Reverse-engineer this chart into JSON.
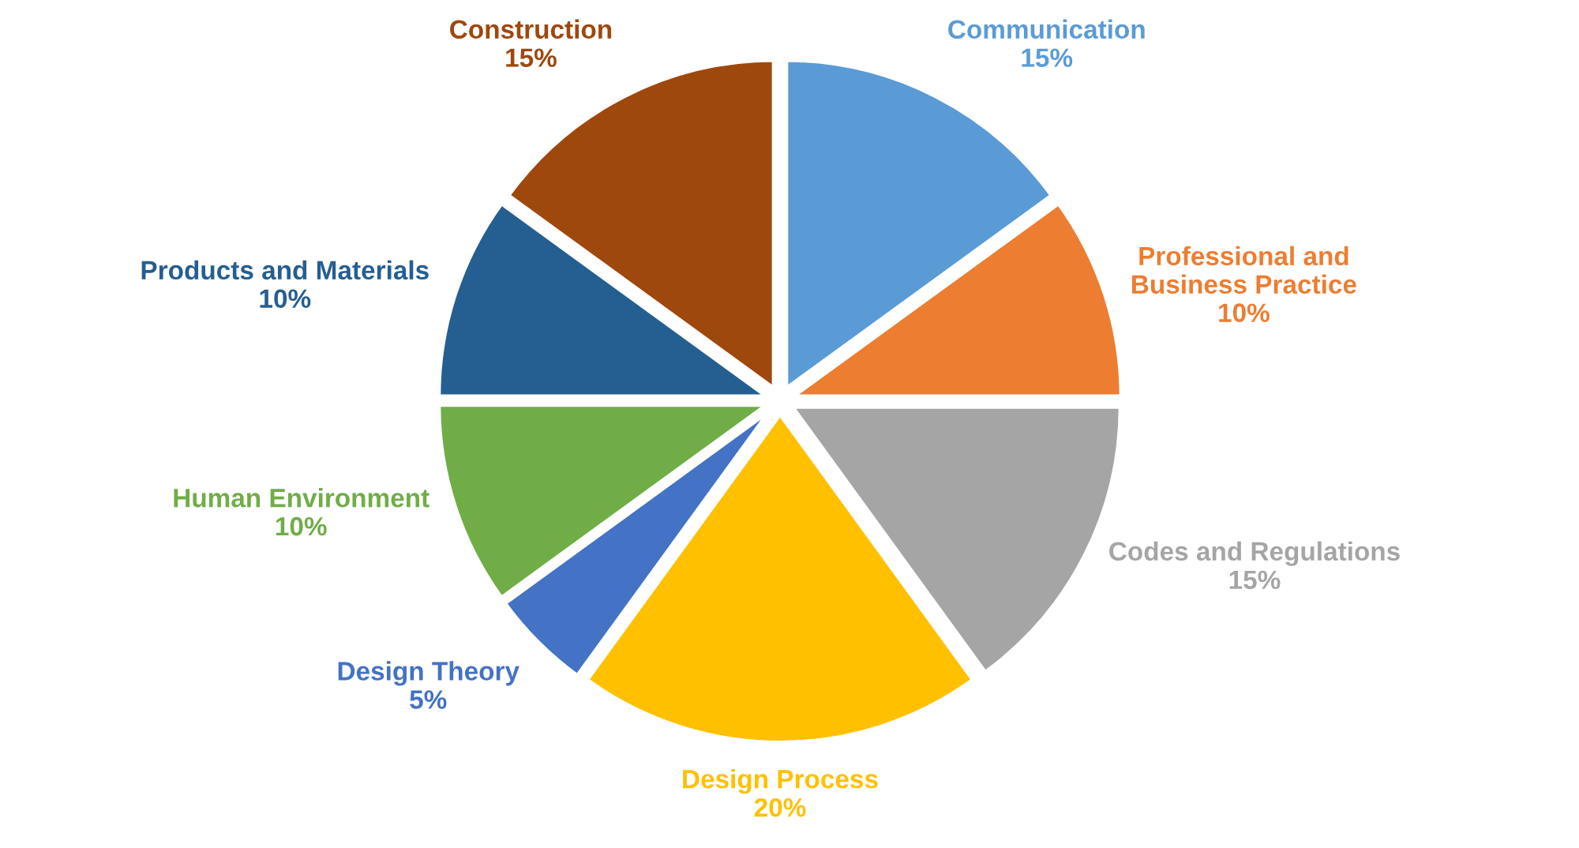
{
  "chart_data": {
    "type": "pie",
    "categories": [
      "Communication",
      "Professional and\nBusiness Practice",
      "Codes and Regulations",
      "Design Process",
      "Design Theory",
      "Human Environment",
      "Products and Materials",
      "Construction"
    ],
    "values": [
      15,
      10,
      15,
      20,
      5,
      10,
      10,
      15
    ],
    "value_labels": [
      "15%",
      "10%",
      "15%",
      "20%",
      "5%",
      "10%",
      "10%",
      "15%"
    ],
    "colors": [
      "#5b9bd5",
      "#ed7d31",
      "#a5a5a5",
      "#ffc000",
      "#4472c4",
      "#70ad47",
      "#255e91",
      "#9e480e"
    ],
    "legend": false
  }
}
